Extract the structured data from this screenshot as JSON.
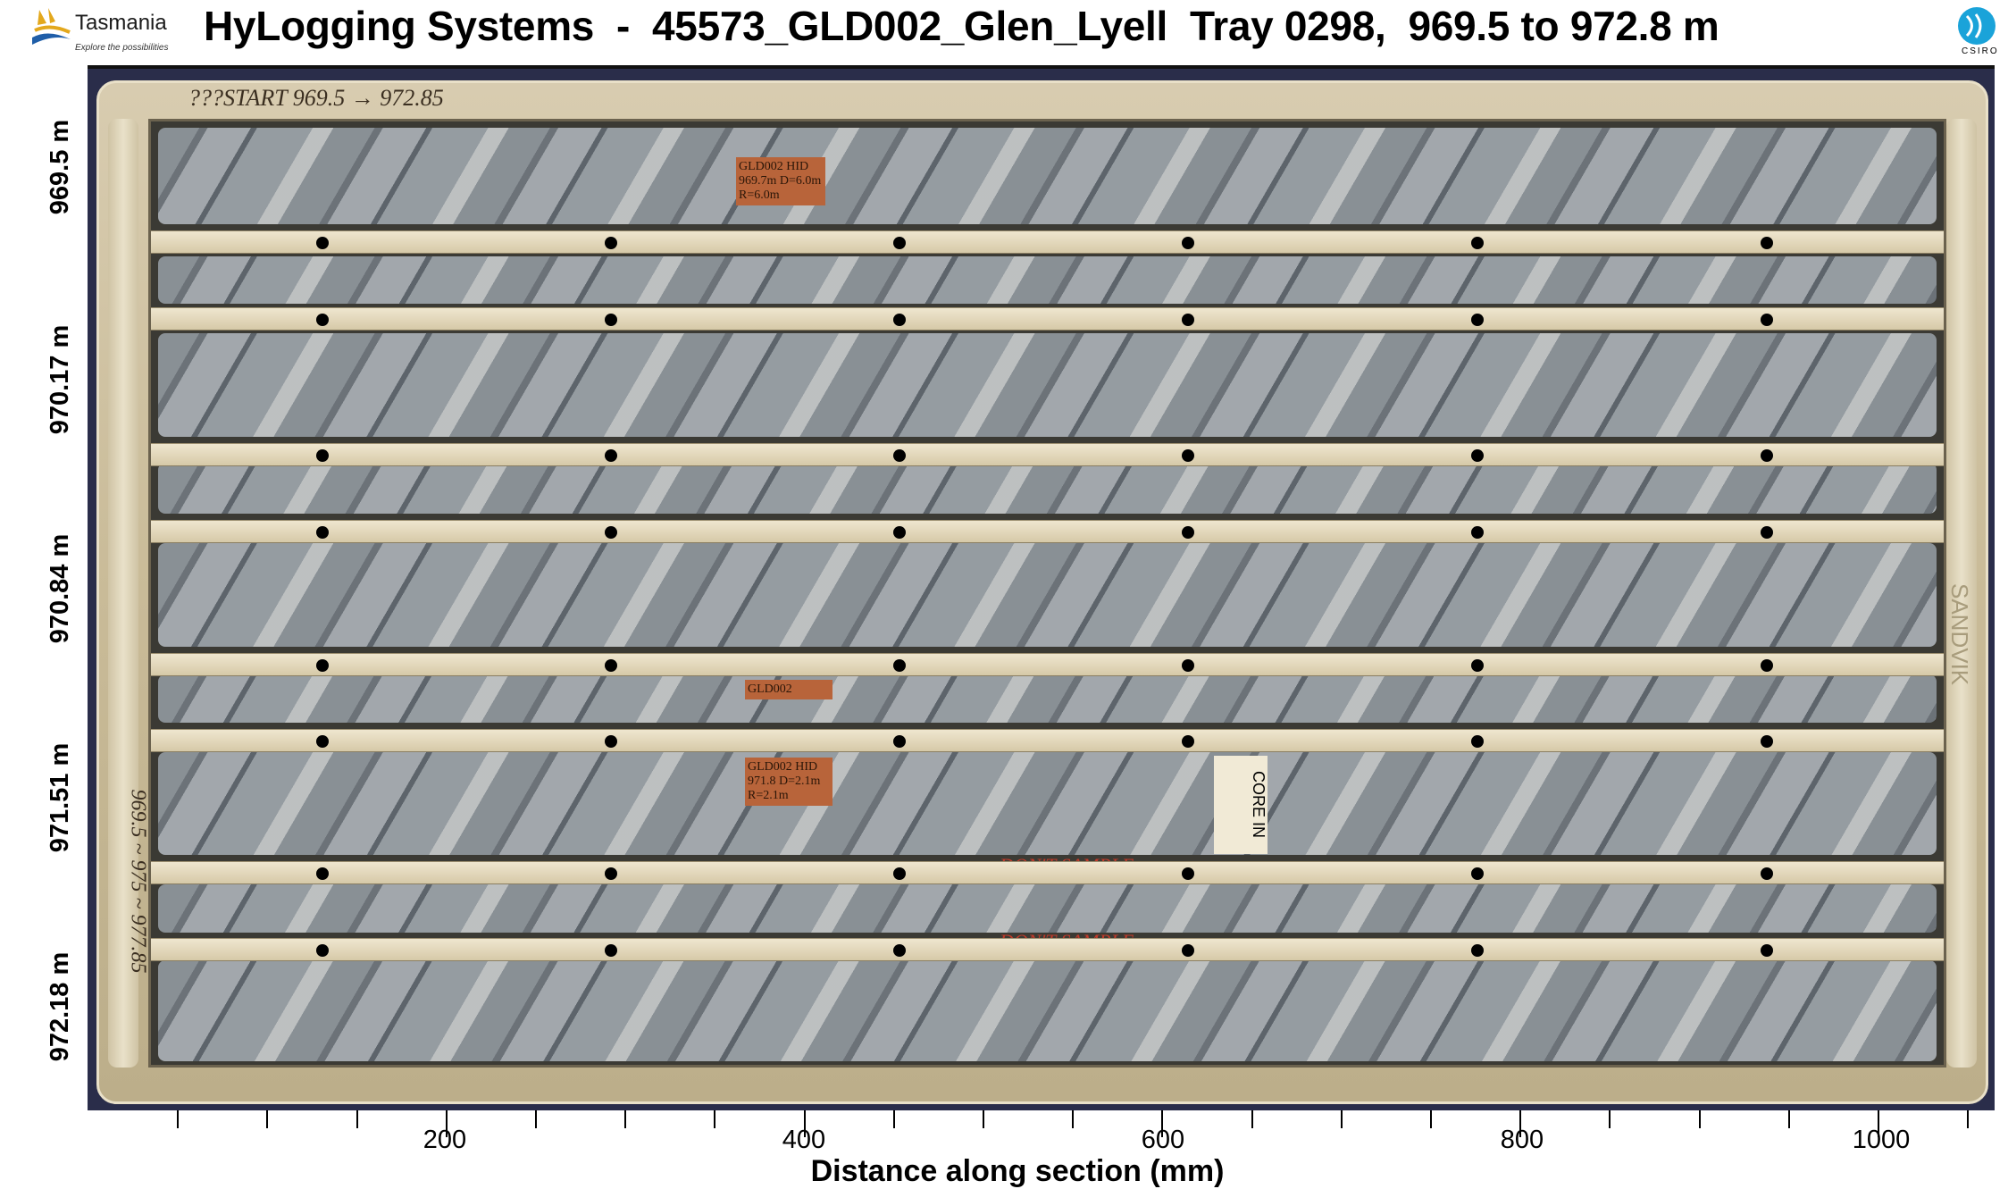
{
  "header": {
    "title": "HyLogging Systems  -  45573_GLD002_Glen_Lyell  Tray 0298,  969.5 to 972.8 m",
    "left_logo": {
      "name": "Tasmania",
      "tagline": "Explore the possibilities"
    },
    "right_logo": {
      "name": "CSIRO"
    }
  },
  "axes": {
    "x_label": "Distance along section (mm)",
    "x_ticks": [
      "200",
      "400",
      "600",
      "800",
      "1000"
    ],
    "x_range_mm": [
      0,
      1066
    ],
    "y_labels": [
      "969.5 m",
      "970.17 m",
      "970.84 m",
      "971.51 m",
      "972.18 m"
    ]
  },
  "tray_annotations": {
    "start_label": "???START 969.5 → 972.85",
    "side_label": "969.5 ~ 975 ~ 977.85",
    "sample_tag_1": "GLD002 HID 969.7m D=6.0m R=6.0m",
    "sample_tag_2": "GLD002",
    "sample_tag_3": "GLD002 HID 971.8 D=2.1m R=2.1m",
    "dont_sample_1": "DON'T SAMPLE",
    "dont_sample_2": "DON'T SAMPLE",
    "core_in": "CORE IN",
    "tray_brand": "SANDVIK"
  },
  "colors": {
    "tray": "#d3c6a4",
    "core": "#8d949a",
    "csiro": "#1aa3d9"
  }
}
